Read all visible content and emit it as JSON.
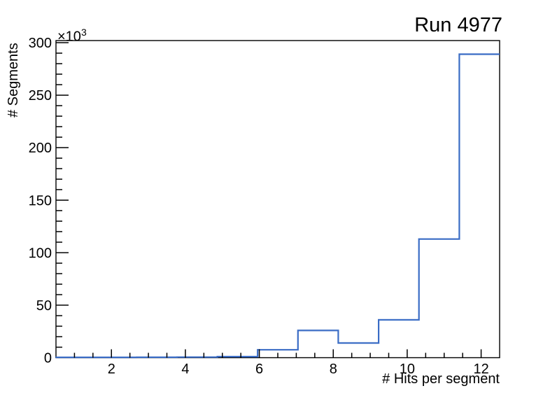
{
  "page": {
    "background": "#ffffff"
  },
  "chart_data": {
    "type": "bar",
    "style": "step-histogram",
    "title": "Run 4977",
    "xlabel": "# Hits per segment",
    "ylabel": "# Segments",
    "y_axis_exponent": {
      "base": "×10",
      "exp": "3"
    },
    "xlim": [
      0.5,
      12.5
    ],
    "ylim_thousands": [
      0,
      302
    ],
    "bin_edges": [
      0.5,
      1.591,
      2.682,
      3.773,
      4.864,
      5.955,
      7.045,
      8.136,
      9.227,
      10.318,
      11.409,
      12.5
    ],
    "counts_thousands": [
      0.3,
      0.3,
      0.4,
      0.5,
      1.0,
      7.5,
      26.0,
      14.0,
      36.0,
      113.0,
      289.0
    ],
    "x_major_ticks": [
      2,
      4,
      6,
      8,
      10,
      12
    ],
    "x_minor_tick_step": 0.5,
    "y_major_ticks_thousands": [
      0,
      50,
      100,
      150,
      200,
      250,
      300
    ],
    "y_minor_tick_step_thousands": 10,
    "grid": false,
    "legend": "none",
    "colors": {
      "histogram_line": "#3a6cc5",
      "axis": "#000000",
      "text": "#000000",
      "background": "#ffffff"
    }
  }
}
